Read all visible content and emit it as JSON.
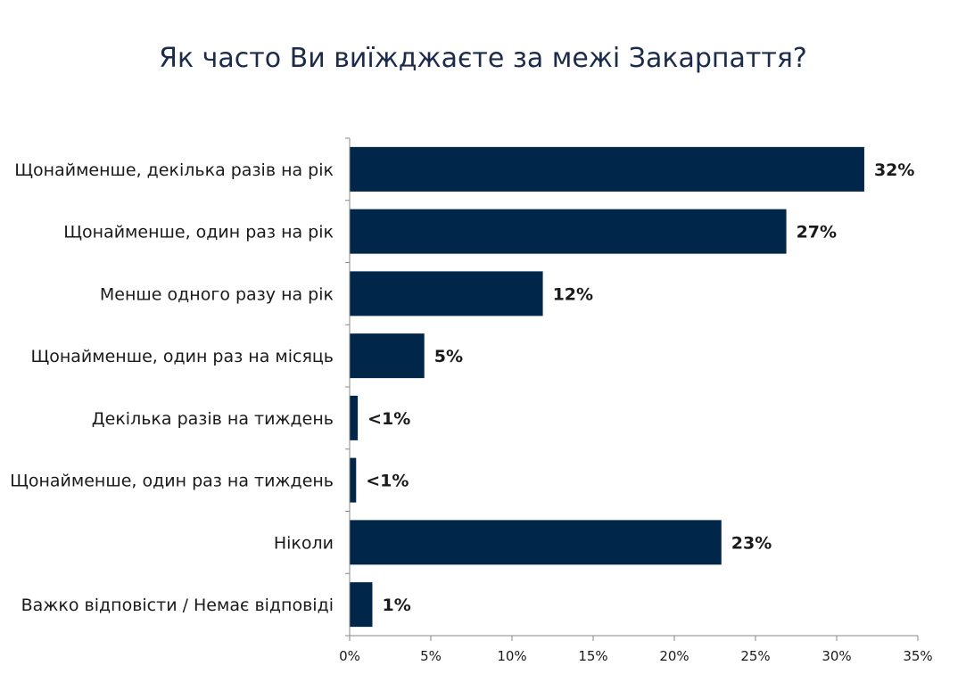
{
  "colors": {
    "bar": "#00264a",
    "axis": "#888888",
    "title": "#1c2b4a"
  },
  "chart_data": {
    "type": "bar",
    "orientation": "horizontal",
    "title": "Як часто Ви виїжджаєте за межі Закарпаття?",
    "categories": [
      "Щонайменше, декілька разів на рік",
      "Щонайменше, один раз на рік",
      "Менше одного разу на рік",
      "Щонайменше, один раз на місяць",
      "Декілька разів на тиждень",
      "Щонайменше, один раз на тиждень",
      "Ніколи",
      "Важко відповісти / Немає відповіді"
    ],
    "values": [
      31.7,
      26.9,
      11.9,
      4.6,
      0.5,
      0.4,
      22.9,
      1.4
    ],
    "value_labels": [
      "32%",
      "27%",
      "12%",
      "5%",
      "<1%",
      "<1%",
      "23%",
      "1%"
    ],
    "xlim": [
      0,
      35
    ],
    "xticks": [
      "0%",
      "5%",
      "10%",
      "15%",
      "20%",
      "25%",
      "30%",
      "35%"
    ],
    "xlabel": "",
    "ylabel": "",
    "grid": false,
    "legend": "none"
  }
}
